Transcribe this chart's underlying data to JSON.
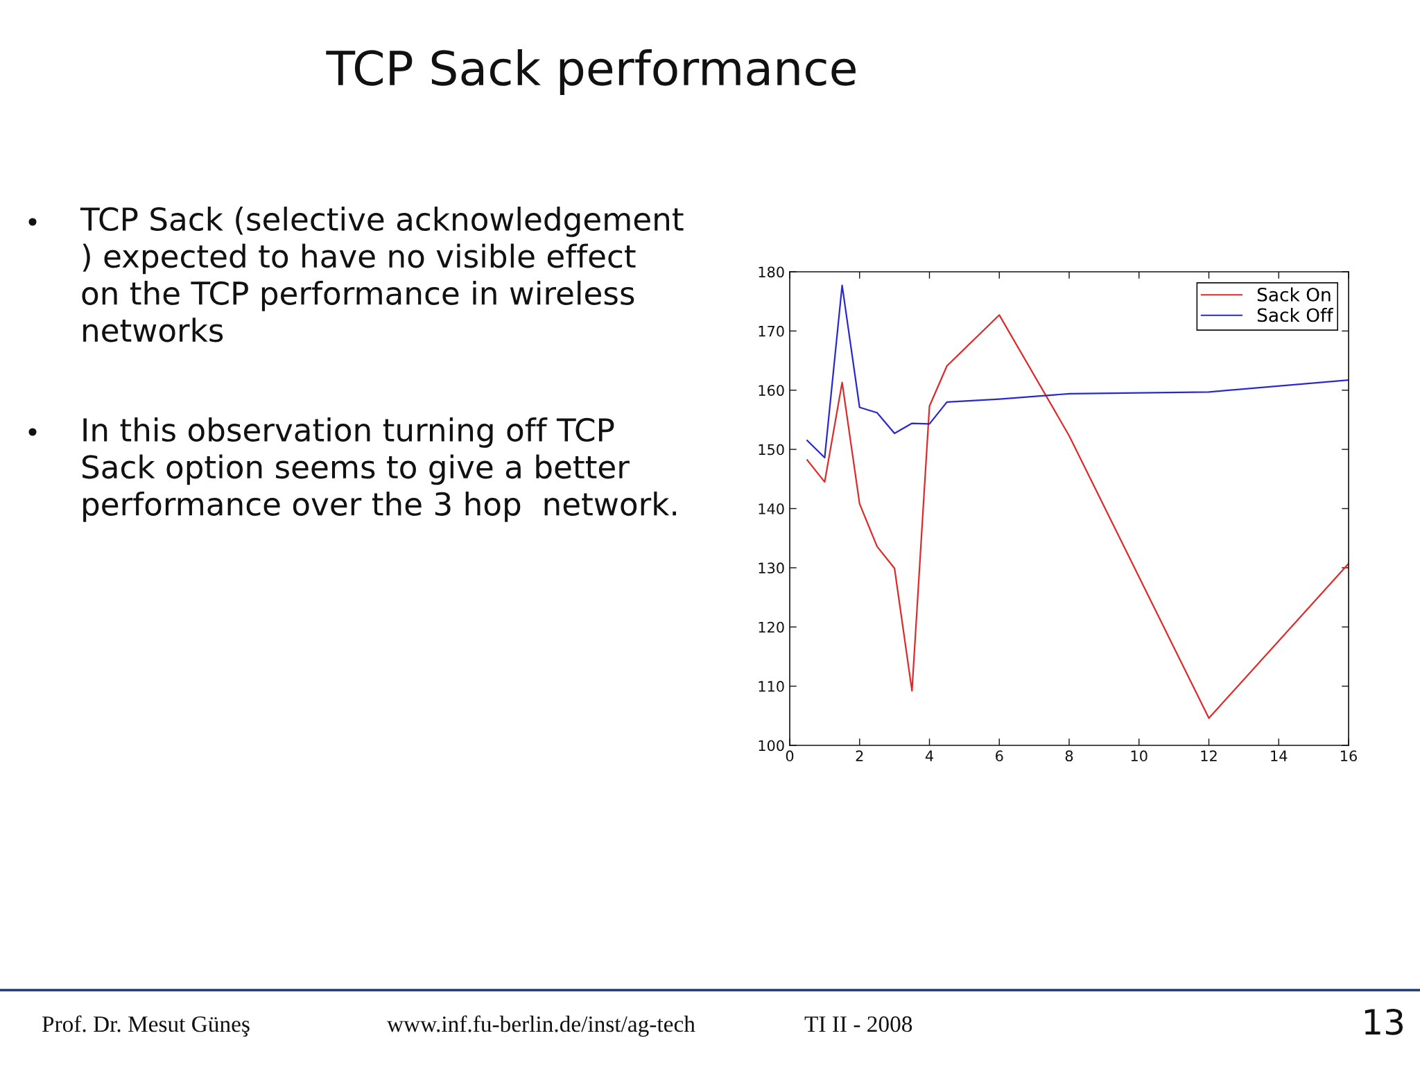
{
  "chart_data": {
    "type": "line",
    "title": "TCP Sack performance",
    "x": [
      0.5,
      1,
      1.5,
      2,
      2.5,
      3,
      3.5,
      4,
      4.5,
      6,
      8,
      12,
      16
    ],
    "series": [
      {
        "name": "Sack On",
        "color": "#e02828",
        "values": [
          148.2,
          144.5,
          161.3,
          140.8,
          133.6,
          129.9,
          109.2,
          157.3,
          164.1,
          172.7,
          152.3,
          104.6,
          130.7
        ]
      },
      {
        "name": "Sack Off",
        "color": "#2828d0",
        "values": [
          151.5,
          148.6,
          177.7,
          157.1,
          156.2,
          152.7,
          154.4,
          154.3,
          158.0,
          158.5,
          159.4,
          159.7,
          161.7
        ]
      }
    ],
    "xlim": [
      0,
      16
    ],
    "xticks": [
      0,
      2,
      4,
      6,
      8,
      10,
      12,
      14,
      16
    ],
    "ylim": [
      100,
      180
    ],
    "yticks": [
      100,
      110,
      120,
      130,
      140,
      150,
      160,
      170,
      180
    ],
    "legend": "top right",
    "annotations": [
      "TCP Sack (selective acknowledgement\n) expected to have no visible effect\non the TCP performance in wireless\nnetworks",
      "In this observation turning off TCP\nSack option seems to give a better\nperformance over the 3 hop  network.",
      "Prof. Dr. Mesut Güneş",
      "www.inf.fu-berlin.de/inst/ag-tech",
      "TI II - 2008",
      "13"
    ]
  }
}
